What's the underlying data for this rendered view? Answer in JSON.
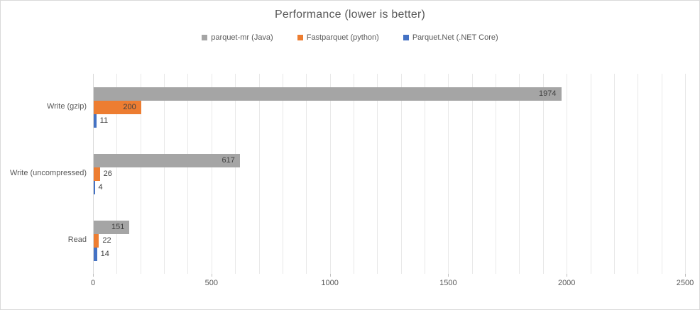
{
  "chart": {
    "title": "Performance (lower is better)"
  },
  "chart_data": {
    "type": "bar",
    "orientation": "horizontal",
    "title": "Performance (lower is better)",
    "categories": [
      "Write (gzip)",
      "Write (uncompressed)",
      "Read"
    ],
    "series": [
      {
        "name": "parquet-mr (Java)",
        "color": "#a5a5a5",
        "values": [
          1974,
          617,
          151
        ]
      },
      {
        "name": "Fastparquet (python)",
        "color": "#ed7d31",
        "values": [
          200,
          26,
          22
        ]
      },
      {
        "name": "Parquet.Net (.NET Core)",
        "color": "#4472c4",
        "values": [
          11,
          4,
          14
        ]
      }
    ],
    "x_ticks": [
      "0",
      "500",
      "1000",
      "1500",
      "2000",
      "2500"
    ],
    "xlim": [
      0,
      2500
    ],
    "minor_grid_step": 100,
    "grid": true,
    "legend_position": "top",
    "data_labels": "end"
  },
  "colors": {
    "title_text": "#595959",
    "axis_text": "#595959",
    "data_label_text": "#404040",
    "gridline": "#e8e8e8",
    "axis_line": "#d9d9d9",
    "tick_mark": "#bfbfbf",
    "chart_border": "#d9d9d9",
    "background": "#ffffff"
  }
}
